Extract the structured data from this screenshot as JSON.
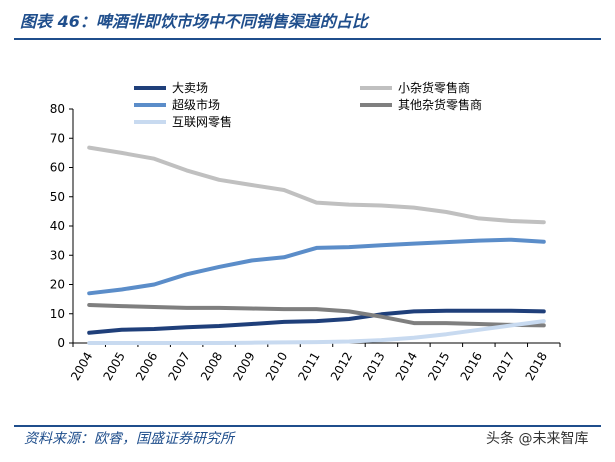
{
  "figure": {
    "title": "图表 46：啤酒非即饮市场中不同销售渠道的占比",
    "source": "资料来源：欧睿，国盛证券研究所",
    "watermark": "头条 @未来智库"
  },
  "chart_data": {
    "type": "line",
    "x": [
      "2004",
      "2005",
      "2006",
      "2007",
      "2008",
      "2009",
      "2010",
      "2011",
      "2012",
      "2013",
      "2014",
      "2015",
      "2016",
      "2017",
      "2018"
    ],
    "ylim": [
      0,
      80
    ],
    "yticks": [
      0,
      10,
      20,
      30,
      40,
      50,
      60,
      70,
      80
    ],
    "grid": false,
    "legend_position": "top",
    "series": [
      {
        "name": "大卖场",
        "color": "#1f3f7a",
        "values": [
          3.5,
          4.5,
          4.8,
          5.4,
          5.8,
          6.5,
          7.2,
          7.5,
          8.2,
          9.8,
          10.8,
          11.0,
          11.0,
          11.0,
          10.8
        ]
      },
      {
        "name": "小杂货零售商",
        "color": "#c0c0c0",
        "values": [
          66.8,
          65.0,
          63.0,
          59.0,
          55.8,
          54.0,
          52.3,
          48.0,
          47.3,
          47.0,
          46.3,
          44.8,
          42.6,
          41.7,
          41.3
        ]
      },
      {
        "name": "超级市场",
        "color": "#5b8dc9",
        "values": [
          17.0,
          18.3,
          20.0,
          23.5,
          26.0,
          28.2,
          29.3,
          32.5,
          32.8,
          33.4,
          34.0,
          34.5,
          35.0,
          35.3,
          34.6
        ]
      },
      {
        "name": "其他杂货零售商",
        "color": "#7f7f7f",
        "values": [
          13.0,
          12.6,
          12.3,
          12.0,
          12.0,
          11.8,
          11.6,
          11.6,
          10.8,
          9.0,
          6.8,
          6.8,
          6.5,
          6.2,
          6.0
        ]
      },
      {
        "name": "互联网零售",
        "color": "#c8daf0",
        "values": [
          0.0,
          0.0,
          0.0,
          0.0,
          0.0,
          0.1,
          0.2,
          0.3,
          0.5,
          1.0,
          1.8,
          3.0,
          4.5,
          6.0,
          7.5
        ]
      }
    ]
  }
}
